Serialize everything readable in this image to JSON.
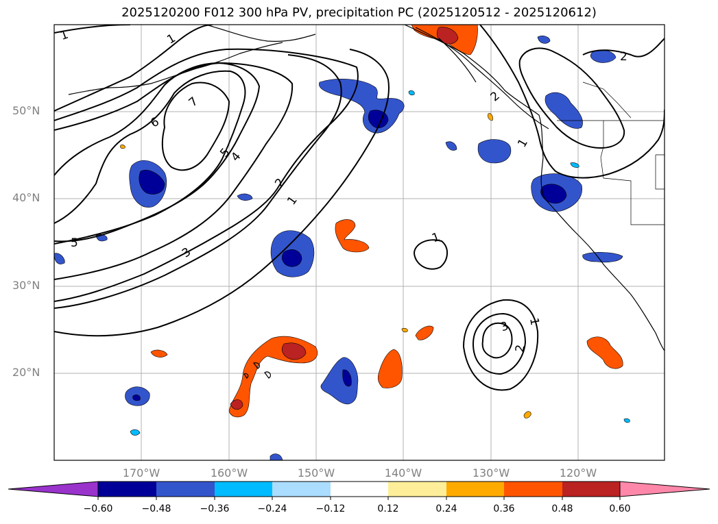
{
  "title": "2025120200 F012 300 hPa PV, precipitation PC (2025120512 - 2025120612)",
  "lat_labels": [
    "50°N",
    "40°N",
    "30°N",
    "20°N"
  ],
  "lon_labels": [
    "170°W",
    "160°W",
    "150°W",
    "140°W",
    "130°W",
    "120°W"
  ],
  "contour_labels": [
    "1",
    "1",
    "6",
    "7",
    "5",
    "4",
    "2",
    "1",
    "3",
    "5",
    "1",
    "3",
    "2",
    "1",
    "2",
    "2",
    "1"
  ],
  "colorbar": {
    "ticks": [
      "−0.60",
      "−0.48",
      "−0.36",
      "−0.24",
      "−0.12",
      "0.12",
      "0.24",
      "0.36",
      "0.48",
      "0.60"
    ],
    "colors": [
      "#9933cc",
      "#000099",
      "#3355cc",
      "#00bbff",
      "#aaddff",
      "#ffffff",
      "#ffee99",
      "#ffaa00",
      "#ff5500",
      "#bb2222",
      "#ff88aa"
    ]
  },
  "colors": {
    "neg_strong": "#000099",
    "neg_mid": "#3355cc",
    "neg_light": "#00bbff",
    "neg_faint": "#aaddff",
    "pos_faint": "#ffee99",
    "pos_mid": "#ffaa00",
    "pos_strong": "#ff5500",
    "pos_dark": "#bb2222"
  }
}
